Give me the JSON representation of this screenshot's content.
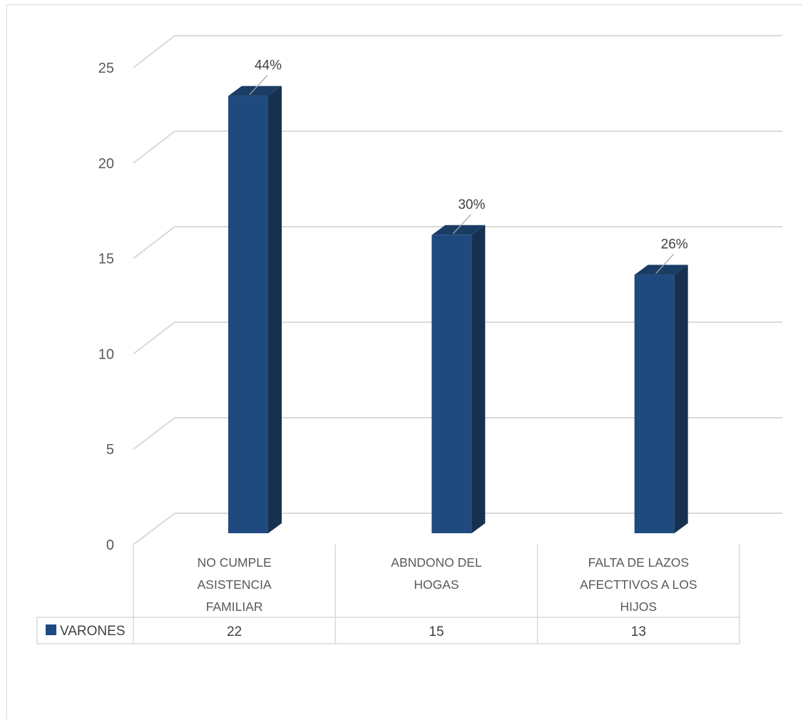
{
  "chart_data": {
    "type": "bar",
    "categories": [
      [
        "NO CUMPLE",
        "ASISTENCIA",
        "FAMILIAR"
      ],
      [
        "ABNDONO DEL",
        "HOGAS"
      ],
      [
        "FALTA DE LAZOS",
        "AFECTTIVOS A LOS",
        "HIJOS"
      ]
    ],
    "series": [
      {
        "name": "VARONES",
        "values": [
          22,
          15,
          13
        ],
        "color": "#1f4a7f",
        "side_color": "#17304f",
        "top_color": "#1a3d66"
      }
    ],
    "data_labels": [
      "44%",
      "30%",
      "26%"
    ],
    "table_values": [
      "22",
      "15",
      "13"
    ],
    "y_ticks": [
      "0",
      "5",
      "10",
      "15",
      "20",
      "25"
    ],
    "ylim": [
      0,
      25
    ],
    "grid": true,
    "three_d": true,
    "data_table": true,
    "legend_in_table": true,
    "title": "",
    "xlabel": "",
    "ylabel": ""
  }
}
